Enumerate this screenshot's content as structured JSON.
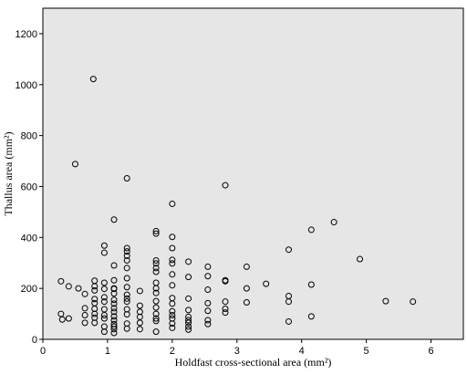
{
  "chart_data": {
    "type": "scatter",
    "title": "",
    "xlabel": "Holdfast cross-sectional area (mm²)",
    "ylabel": "Thallus  area (mm²)",
    "xlim": [
      0,
      6.5
    ],
    "ylim": [
      0,
      1300
    ],
    "x_ticks": [
      "0",
      "1",
      "2",
      "3",
      "4",
      "5",
      "6"
    ],
    "y_ticks": [
      "0",
      "200",
      "400",
      "600",
      "800",
      "1000",
      "1200"
    ],
    "grid": false,
    "legend": "none",
    "plot_background": "#e6e6e6",
    "marker": "hollow-circle",
    "series": [
      {
        "points": [
          [
            0.28,
            228
          ],
          [
            0.28,
            100
          ],
          [
            0.3,
            78
          ],
          [
            0.4,
            208
          ],
          [
            0.4,
            82
          ],
          [
            0.5,
            688
          ],
          [
            0.55,
            200
          ],
          [
            0.65,
            178
          ],
          [
            0.65,
            122
          ],
          [
            0.65,
            95
          ],
          [
            0.65,
            65
          ],
          [
            0.78,
            1022
          ],
          [
            0.8,
            230
          ],
          [
            0.8,
            208
          ],
          [
            0.8,
            192
          ],
          [
            0.8,
            158
          ],
          [
            0.8,
            142
          ],
          [
            0.8,
            120
          ],
          [
            0.8,
            100
          ],
          [
            0.8,
            85
          ],
          [
            0.8,
            65
          ],
          [
            0.95,
            368
          ],
          [
            0.95,
            340
          ],
          [
            0.95,
            222
          ],
          [
            0.95,
            198
          ],
          [
            0.95,
            165
          ],
          [
            0.95,
            148
          ],
          [
            0.95,
            118
          ],
          [
            0.95,
            95
          ],
          [
            0.95,
            82
          ],
          [
            0.95,
            50
          ],
          [
            0.95,
            30
          ],
          [
            1.1,
            470
          ],
          [
            1.1,
            290
          ],
          [
            1.1,
            232
          ],
          [
            1.1,
            200
          ],
          [
            1.1,
            198
          ],
          [
            1.1,
            180
          ],
          [
            1.1,
            155
          ],
          [
            1.1,
            140
          ],
          [
            1.1,
            122
          ],
          [
            1.1,
            108
          ],
          [
            1.1,
            90
          ],
          [
            1.1,
            75
          ],
          [
            1.1,
            60
          ],
          [
            1.1,
            50
          ],
          [
            1.1,
            40
          ],
          [
            1.1,
            25
          ],
          [
            1.3,
            632
          ],
          [
            1.3,
            358
          ],
          [
            1.3,
            345
          ],
          [
            1.3,
            328
          ],
          [
            1.3,
            310
          ],
          [
            1.3,
            280
          ],
          [
            1.3,
            240
          ],
          [
            1.3,
            205
          ],
          [
            1.3,
            175
          ],
          [
            1.3,
            160
          ],
          [
            1.3,
            148
          ],
          [
            1.3,
            118
          ],
          [
            1.3,
            98
          ],
          [
            1.3,
            62
          ],
          [
            1.3,
            42
          ],
          [
            1.5,
            190
          ],
          [
            1.5,
            132
          ],
          [
            1.5,
            108
          ],
          [
            1.5,
            88
          ],
          [
            1.5,
            65
          ],
          [
            1.5,
            40
          ],
          [
            1.75,
            425
          ],
          [
            1.75,
            415
          ],
          [
            1.75,
            310
          ],
          [
            1.75,
            298
          ],
          [
            1.75,
            280
          ],
          [
            1.75,
            265
          ],
          [
            1.75,
            222
          ],
          [
            1.75,
            200
          ],
          [
            1.75,
            182
          ],
          [
            1.75,
            150
          ],
          [
            1.75,
            125
          ],
          [
            1.75,
            100
          ],
          [
            1.75,
            82
          ],
          [
            1.75,
            72
          ],
          [
            1.75,
            30
          ],
          [
            2.0,
            532
          ],
          [
            2.0,
            402
          ],
          [
            2.0,
            358
          ],
          [
            2.0,
            312
          ],
          [
            2.0,
            298
          ],
          [
            2.0,
            255
          ],
          [
            2.0,
            212
          ],
          [
            2.0,
            162
          ],
          [
            2.0,
            140
          ],
          [
            2.0,
            110
          ],
          [
            2.0,
            95
          ],
          [
            2.0,
            82
          ],
          [
            2.0,
            62
          ],
          [
            2.0,
            45
          ],
          [
            2.25,
            305
          ],
          [
            2.25,
            245
          ],
          [
            2.25,
            160
          ],
          [
            2.25,
            115
          ],
          [
            2.25,
            88
          ],
          [
            2.25,
            75
          ],
          [
            2.25,
            65
          ],
          [
            2.25,
            50
          ],
          [
            2.25,
            38
          ],
          [
            2.55,
            285
          ],
          [
            2.55,
            248
          ],
          [
            2.55,
            195
          ],
          [
            2.55,
            142
          ],
          [
            2.55,
            112
          ],
          [
            2.55,
            75
          ],
          [
            2.55,
            60
          ],
          [
            2.82,
            605
          ],
          [
            2.82,
            232
          ],
          [
            2.82,
            228
          ],
          [
            2.82,
            148
          ],
          [
            2.82,
            120
          ],
          [
            2.82,
            105
          ],
          [
            3.15,
            285
          ],
          [
            3.15,
            200
          ],
          [
            3.15,
            145
          ],
          [
            3.45,
            218
          ],
          [
            3.8,
            352
          ],
          [
            3.8,
            170
          ],
          [
            3.8,
            148
          ],
          [
            3.8,
            70
          ],
          [
            4.15,
            430
          ],
          [
            4.15,
            215
          ],
          [
            4.15,
            90
          ],
          [
            4.5,
            460
          ],
          [
            4.9,
            315
          ],
          [
            5.3,
            150
          ],
          [
            5.72,
            148
          ]
        ]
      }
    ]
  }
}
